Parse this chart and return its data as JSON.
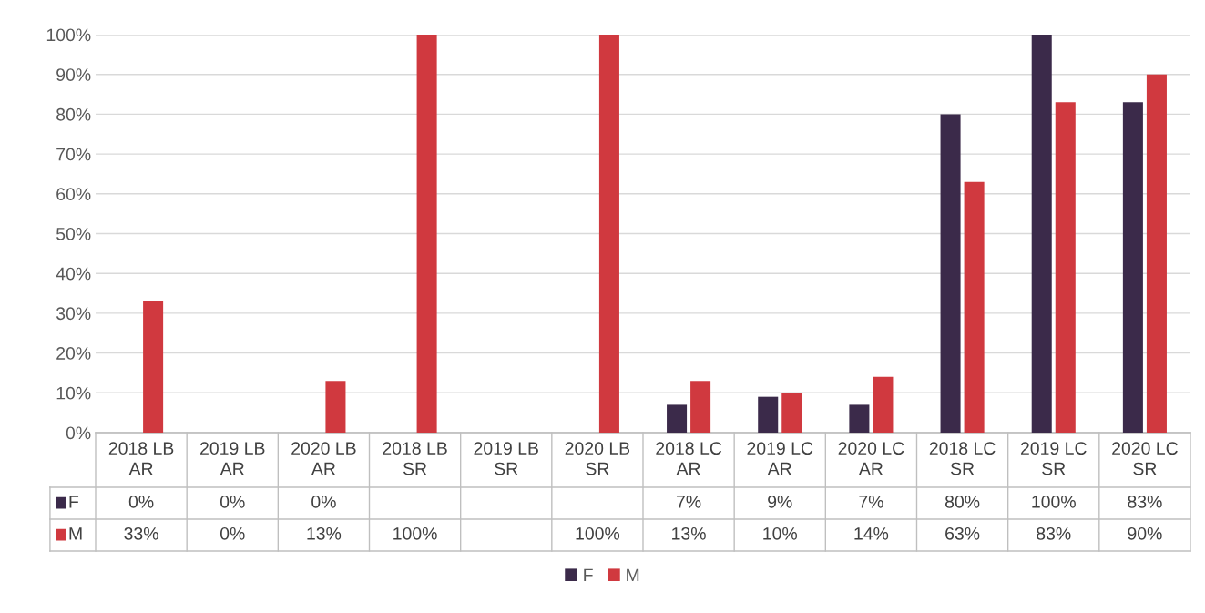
{
  "chart_data": {
    "type": "bar",
    "categories": [
      "2018 LB AR",
      "2019 LB AR",
      "2020 LB AR",
      "2018 LB SR",
      "2019 LB SR",
      "2020 LB SR",
      "2018 LC AR",
      "2019 LC AR",
      "2020 LC AR",
      "2018 LC SR",
      "2019 LC SR",
      "2020 LC SR"
    ],
    "series": [
      {
        "name": "F",
        "color": "#3b2a4a",
        "values": [
          0,
          0,
          0,
          null,
          null,
          null,
          7,
          9,
          7,
          80,
          100,
          83
        ],
        "value_labels": [
          "0%",
          "0%",
          "0%",
          null,
          null,
          null,
          "7%",
          "9%",
          "7%",
          "80%",
          "100%",
          "83%"
        ]
      },
      {
        "name": "M",
        "color": "#d0393f",
        "values": [
          33,
          0,
          13,
          100,
          null,
          100,
          13,
          10,
          14,
          63,
          83,
          90
        ],
        "value_labels": [
          "33%",
          "0%",
          "13%",
          "100%",
          null,
          "100%",
          "13%",
          "10%",
          "14%",
          "63%",
          "83%",
          "90%"
        ]
      }
    ],
    "ylim": [
      0,
      100
    ],
    "yticks": [
      {
        "value": 0,
        "label": "0%"
      },
      {
        "value": 10,
        "label": "10%"
      },
      {
        "value": 20,
        "label": "20%"
      },
      {
        "value": 30,
        "label": "30%"
      },
      {
        "value": 40,
        "label": "40%"
      },
      {
        "value": 50,
        "label": "50%"
      },
      {
        "value": 60,
        "label": "60%"
      },
      {
        "value": 70,
        "label": "70%"
      },
      {
        "value": 80,
        "label": "80%"
      },
      {
        "value": 90,
        "label": "90%"
      },
      {
        "value": 100,
        "label": "100%"
      }
    ],
    "grid": "y",
    "legend": "bottom"
  }
}
